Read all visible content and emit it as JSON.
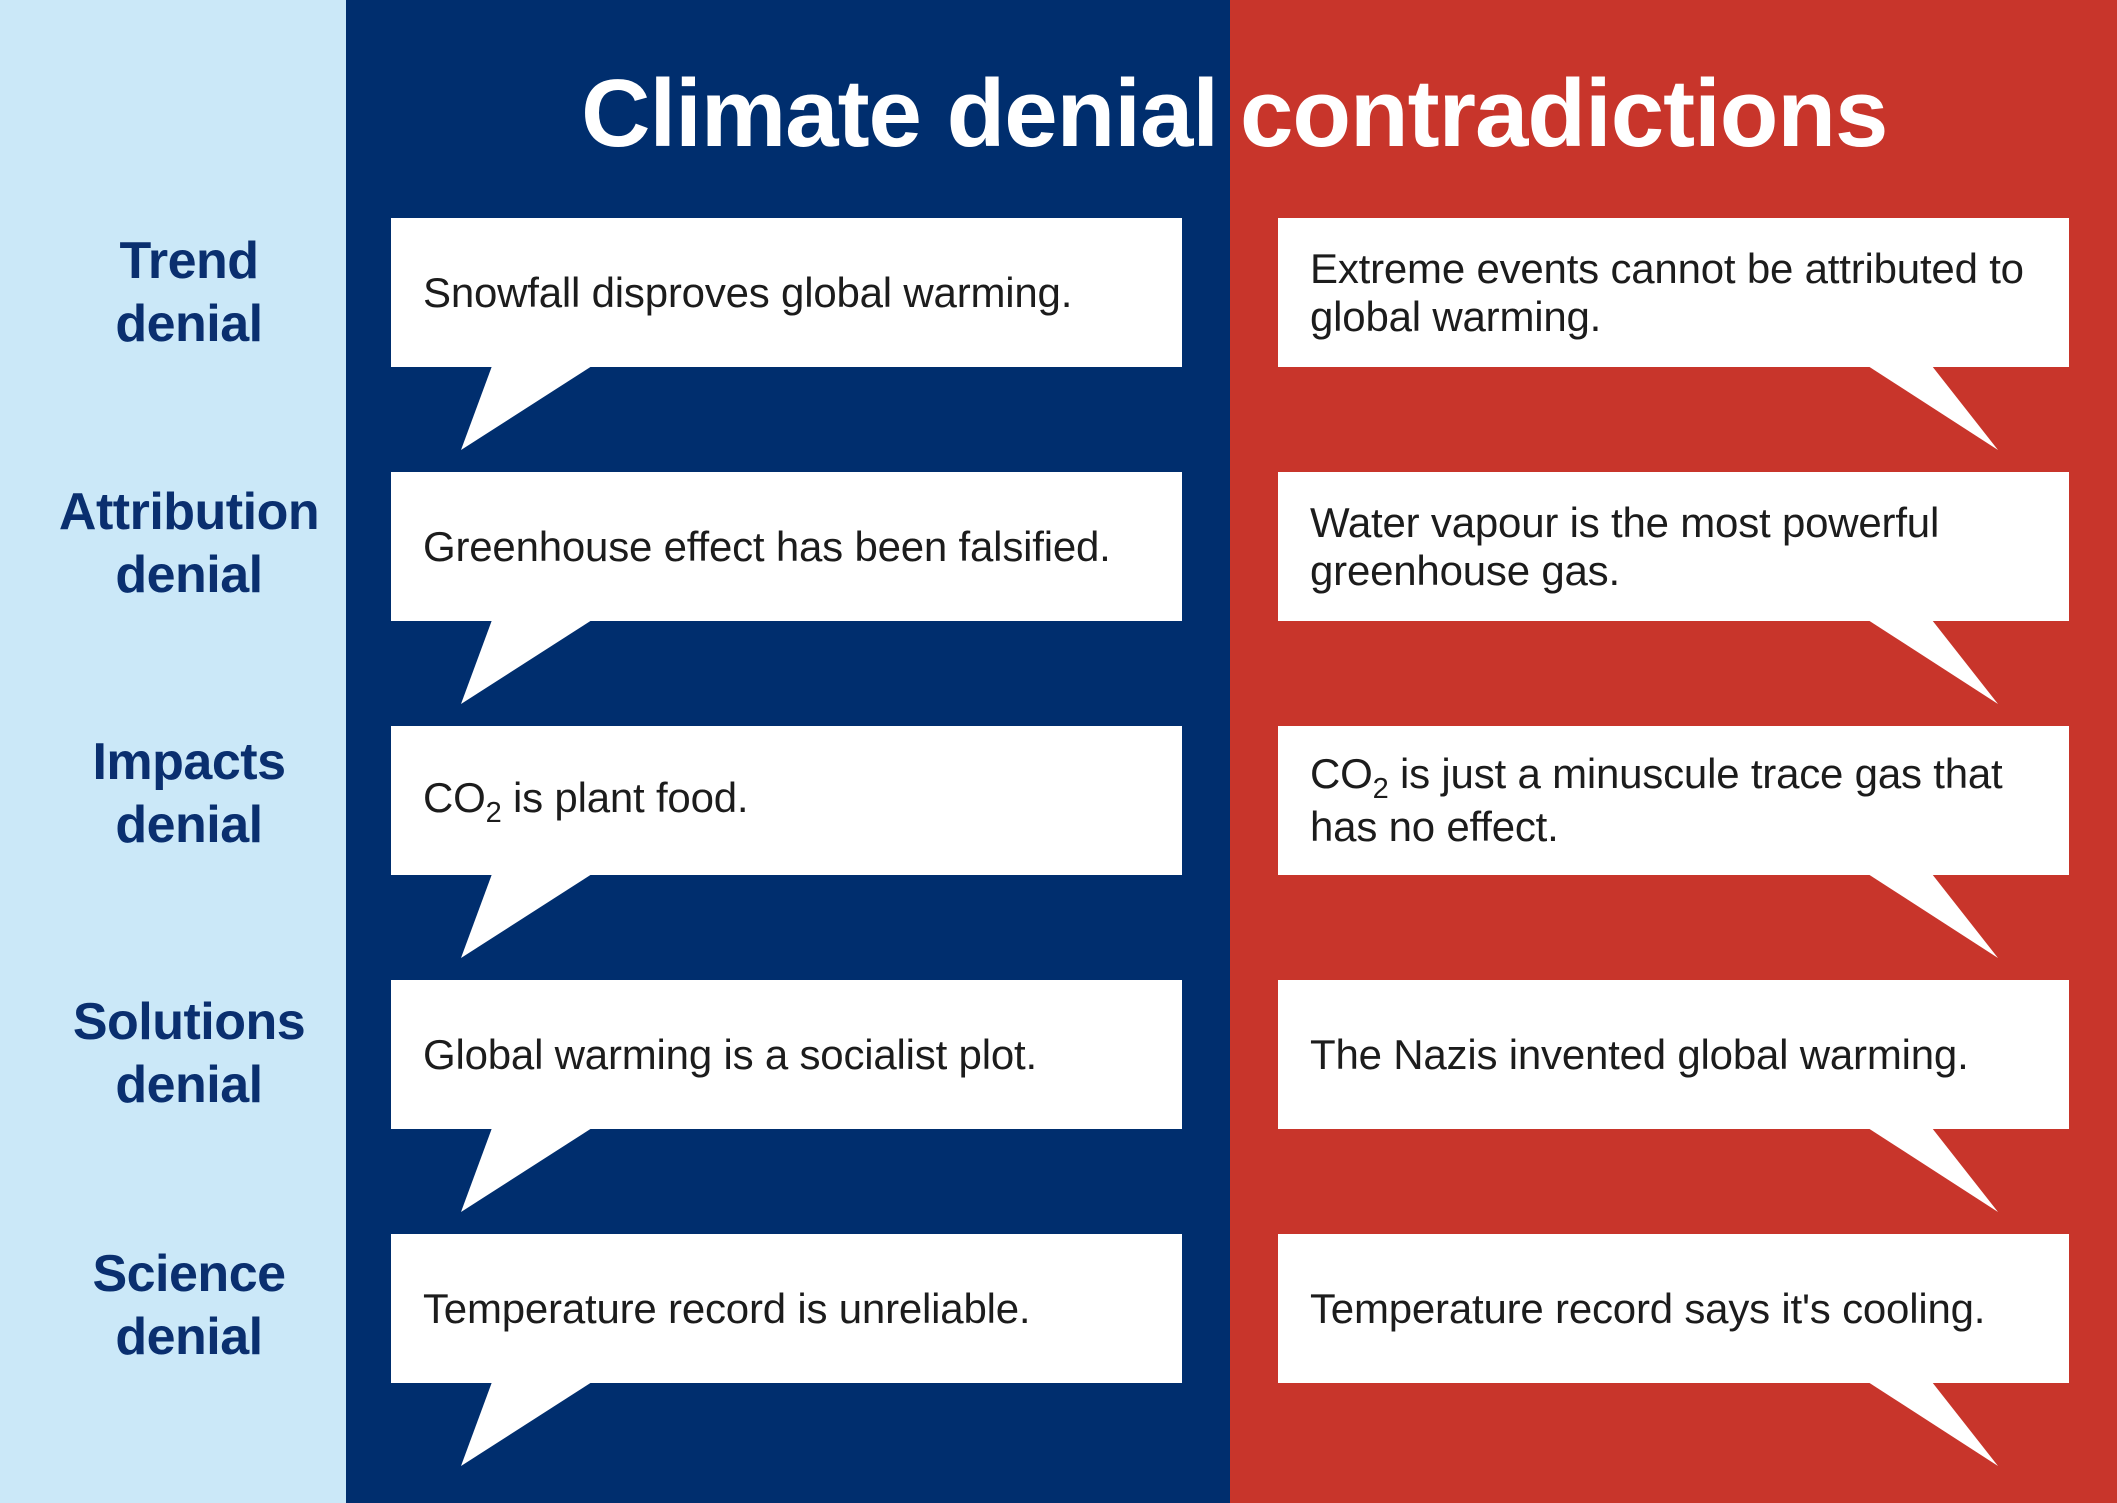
{
  "title": {
    "left": "Climate denial",
    "right": "contradictions"
  },
  "colors": {
    "sidebar_bg": "#cbe8f8",
    "left_bg": "#002e6e",
    "right_bg": "#c8352b",
    "label_text": "#0a2f6f",
    "bubble_bg": "#ffffff",
    "bubble_text": "#1c1c1c",
    "title_text": "#ffffff"
  },
  "rows": [
    {
      "category": [
        "Trend",
        "denial"
      ],
      "left": "Snowfall disproves global warming.",
      "right": "Extreme events cannot be attributed to global warming."
    },
    {
      "category": [
        "Attribution",
        "denial"
      ],
      "left": "Greenhouse effect has been falsified.",
      "right": "Water vapour is the most powerful greenhouse gas."
    },
    {
      "category": [
        "Impacts",
        "denial"
      ],
      "left_parts": [
        "CO",
        "2",
        " is plant food."
      ],
      "right_parts": [
        "CO",
        "2",
        " is just a minuscule trace gas that has no effect."
      ]
    },
    {
      "category": [
        "Solutions",
        "denial"
      ],
      "left": "Global warming is a socialist plot.",
      "right": "The Nazis invented global warming."
    },
    {
      "category": [
        "Science",
        "denial"
      ],
      "left": "Temperature record is unreliable.",
      "right": "Temperature record says it's cooling."
    }
  ]
}
